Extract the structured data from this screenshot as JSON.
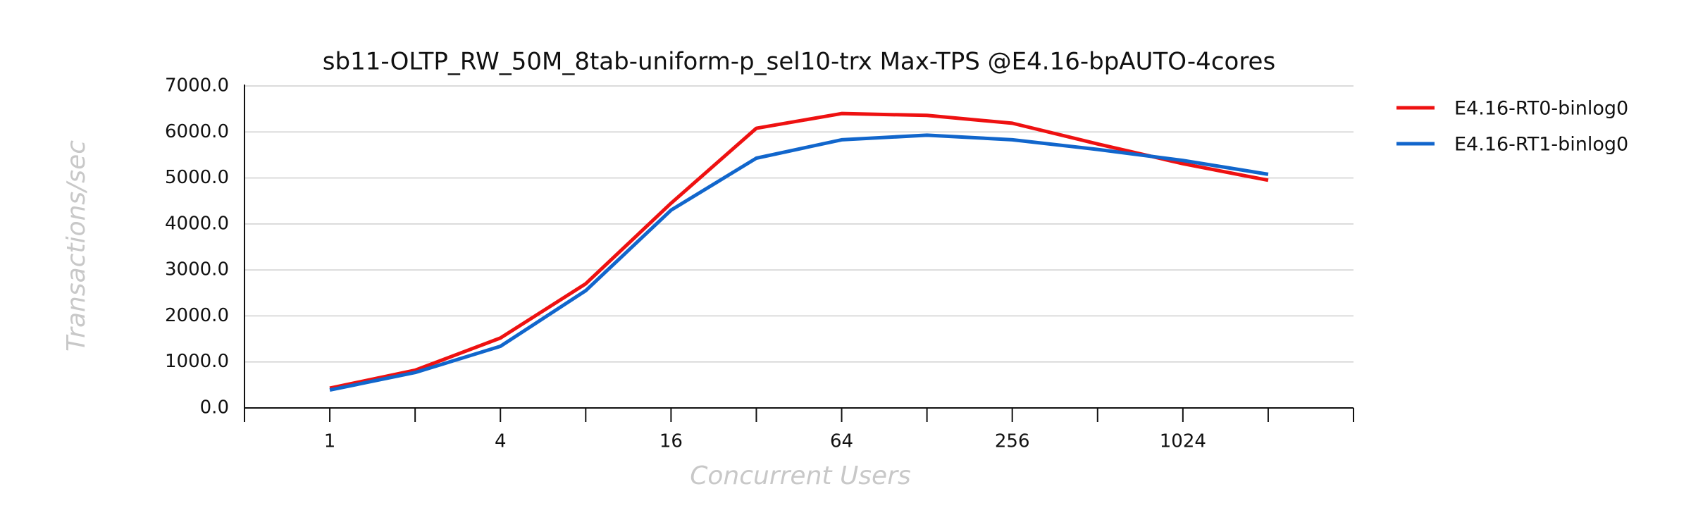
{
  "chart_data": {
    "type": "line",
    "title": "sb11-OLTP_RW_50M_8tab-uniform-p_sel10-trx Max-TPS @E4.16-bpAUTO-4cores",
    "x_label": "Concurrent Users",
    "y_label": "Transactions/sec",
    "categories": [
      "1",
      null,
      "4",
      null,
      "16",
      null,
      "64",
      null,
      "256",
      null,
      "1024",
      null
    ],
    "series": [
      {
        "name": "E4.16-RT0-binlog0",
        "color": "#ee1111",
        "values": [
          430,
          820,
          1520,
          2700,
          4450,
          6080,
          6400,
          6360,
          6190,
          5740,
          5310,
          4950
        ]
      },
      {
        "name": "E4.16-RT1-binlog0",
        "color": "#1166cc",
        "values": [
          390,
          770,
          1340,
          2550,
          4300,
          5430,
          5830,
          5930,
          5830,
          5620,
          5380,
          5080
        ]
      }
    ],
    "ylim": [
      0,
      7000
    ],
    "yticks": [
      {
        "value": 0,
        "label": "0.0"
      },
      {
        "value": 1000,
        "label": "1000.0"
      },
      {
        "value": 2000,
        "label": "2000.0"
      },
      {
        "value": 3000,
        "label": "3000.0"
      },
      {
        "value": 4000,
        "label": "4000.0"
      },
      {
        "value": 5000,
        "label": "5000.0"
      },
      {
        "value": 6000,
        "label": "6000.0"
      },
      {
        "value": 7000,
        "label": "7000.0"
      }
    ],
    "grid": true,
    "legend": "right"
  }
}
